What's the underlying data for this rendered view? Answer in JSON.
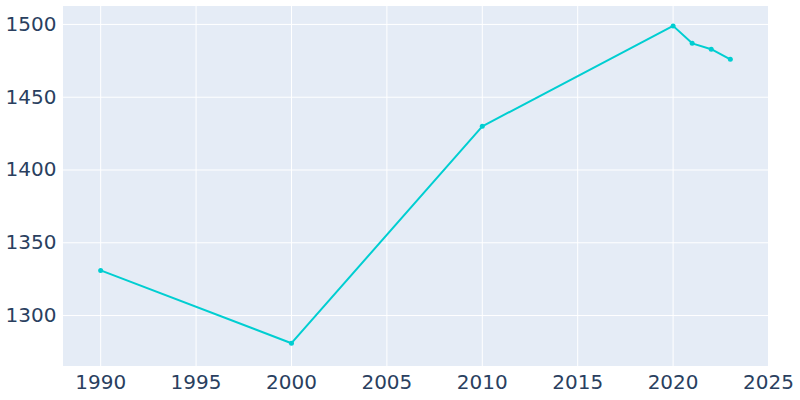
{
  "chart_data": {
    "type": "line",
    "x": [
      1990,
      2000,
      2010,
      2020,
      2021,
      2022,
      2023
    ],
    "values": [
      1331,
      1281,
      1430,
      1499,
      1487,
      1483,
      1476
    ],
    "color": "#00ced1",
    "marker": "circle",
    "xlim": [
      1988,
      2025
    ],
    "xticks": [
      1990,
      1995,
      2000,
      2005,
      2010,
      2015,
      2020,
      2025
    ],
    "ylim": [
      1265,
      1513
    ],
    "yticks": [
      1300,
      1350,
      1400,
      1450,
      1500
    ],
    "grid": true
  }
}
